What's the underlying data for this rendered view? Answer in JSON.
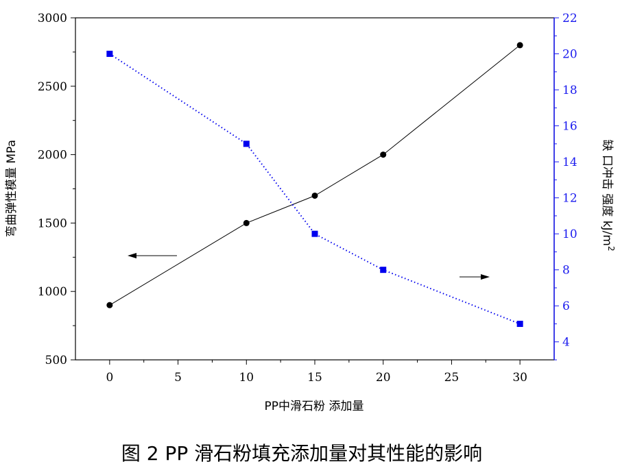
{
  "caption": "图 2 PP 滑石粉填充添加量对其性能的影响",
  "chart_data": {
    "type": "line",
    "xlabel": "PP中滑石粉 添加量",
    "ylabel_left": "弯曲弹性模量 MPa",
    "ylabel_right": "缺 口冲击 强度 kJ/m",
    "ylabel_right_superscript": "2",
    "x_ticks": [
      "0",
      "5",
      "10",
      "15",
      "20",
      "25",
      "30"
    ],
    "xlim": [
      -2.5,
      32.5
    ],
    "ylim_left": [
      500,
      3000
    ],
    "yticks_left": [
      "500",
      "1000",
      "1500",
      "2000",
      "2500",
      "3000"
    ],
    "ylim_right": [
      3,
      22
    ],
    "yticks_right": [
      "4",
      "6",
      "8",
      "10",
      "12",
      "14",
      "16",
      "18",
      "20",
      "22"
    ],
    "right_axis_color": "#1a1aee",
    "series": [
      {
        "axis": "left",
        "color": "#000000",
        "marker": "circle",
        "line_style": "solid",
        "x": [
          0,
          10,
          15,
          20,
          30
        ],
        "y": [
          900,
          1500,
          1700,
          2000,
          2800
        ]
      },
      {
        "axis": "right",
        "color": "#0000ee",
        "marker": "square",
        "line_style": "dotted",
        "x": [
          0,
          10,
          15,
          20,
          30
        ],
        "y": [
          20,
          15,
          10,
          8,
          5
        ]
      }
    ],
    "annotations": [
      {
        "type": "arrow",
        "direction": "left",
        "refers_to_axis": "left"
      },
      {
        "type": "arrow",
        "direction": "right",
        "refers_to_axis": "right"
      }
    ]
  }
}
